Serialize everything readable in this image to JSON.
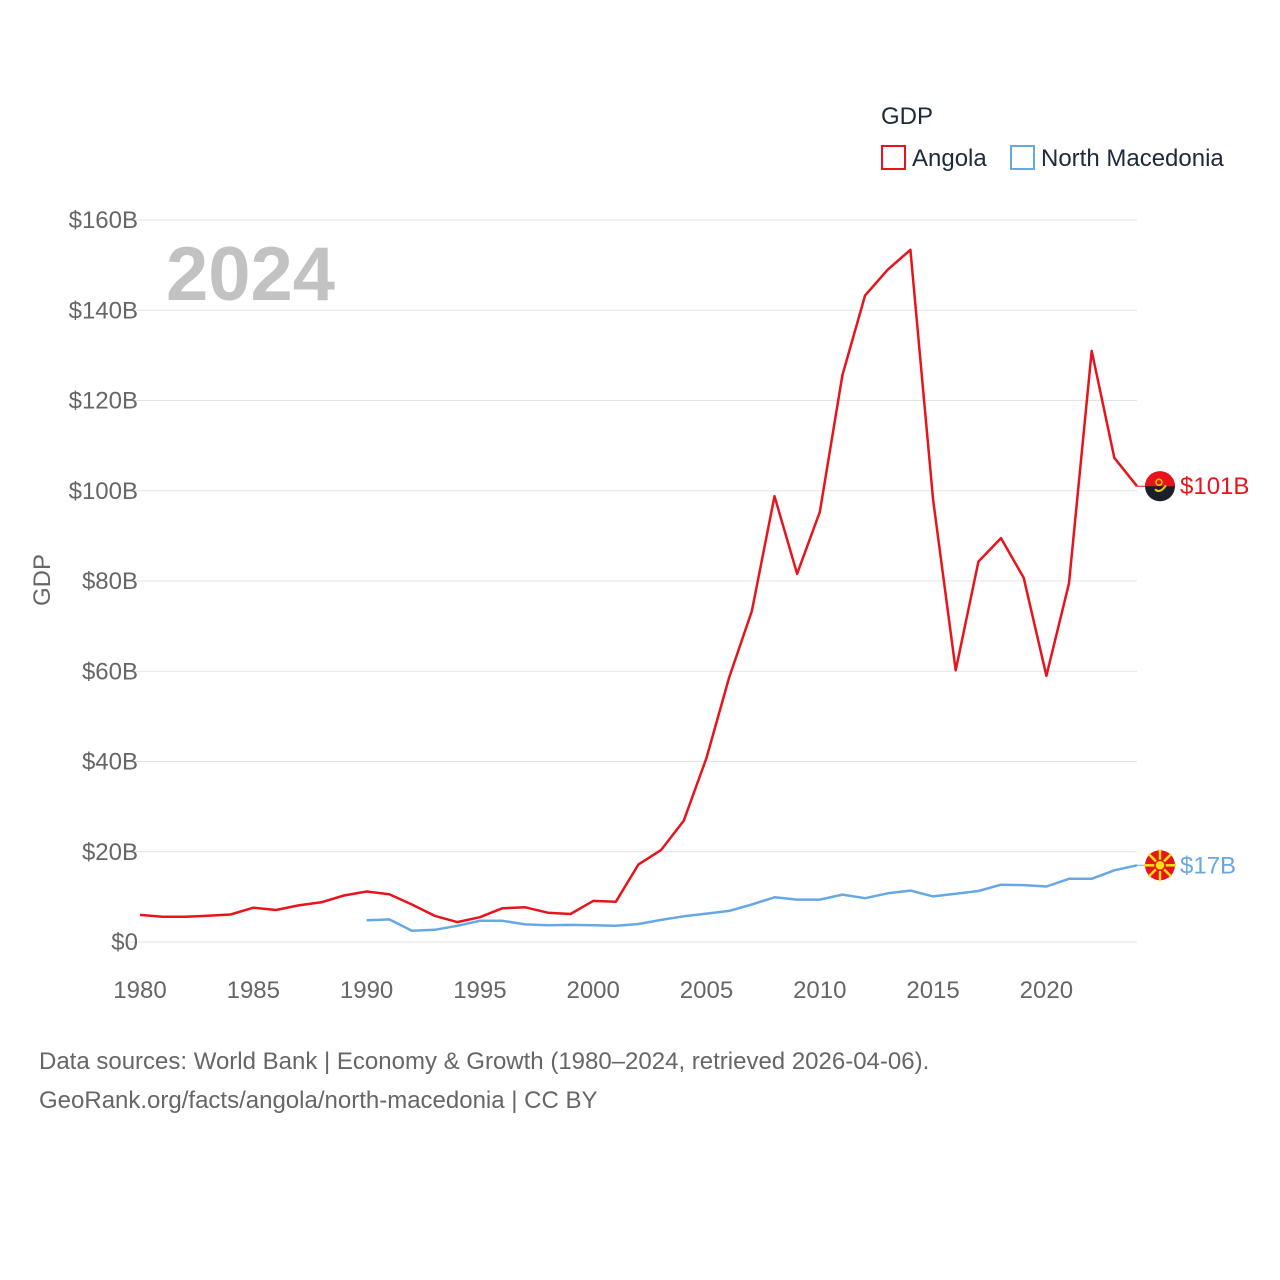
{
  "chart_data": {
    "type": "line",
    "title": "",
    "year_label": "2024",
    "ylabel": "GDP",
    "xlabel": "",
    "xlim": [
      1980,
      2024
    ],
    "ylim": [
      0,
      160
    ],
    "x_ticks": [
      1980,
      1985,
      1990,
      1995,
      2000,
      2005,
      2010,
      2015,
      2020
    ],
    "x_tick_labels": [
      "1980",
      "1985",
      "1990",
      "1995",
      "2000",
      "2005",
      "2010",
      "2015",
      "2020"
    ],
    "y_ticks": [
      0,
      20,
      40,
      60,
      80,
      100,
      120,
      140,
      160
    ],
    "y_tick_labels": [
      "$0",
      "$20B",
      "$40B",
      "$60B",
      "$80B",
      "$100B",
      "$120B",
      "$140B",
      "$160B"
    ],
    "legend": {
      "title": "GDP",
      "position": "top-right"
    },
    "series": [
      {
        "name": "Angola",
        "color": "#e8141b",
        "end_label": "$101B",
        "flag_icon": "angola-flag-icon",
        "x": [
          1980,
          1981,
          1982,
          1983,
          1984,
          1985,
          1986,
          1987,
          1988,
          1989,
          1990,
          1991,
          1992,
          1993,
          1994,
          1995,
          1996,
          1997,
          1998,
          1999,
          2000,
          2001,
          2002,
          2003,
          2004,
          2005,
          2006,
          2007,
          2008,
          2009,
          2010,
          2011,
          2012,
          2013,
          2014,
          2015,
          2016,
          2017,
          2018,
          2019,
          2020,
          2021,
          2022,
          2023,
          2024
        ],
        "values": [
          6.0,
          5.6,
          5.6,
          5.8,
          6.1,
          7.6,
          7.1,
          8.1,
          8.8,
          10.3,
          11.2,
          10.6,
          8.3,
          5.8,
          4.4,
          5.5,
          7.5,
          7.7,
          6.5,
          6.2,
          9.1,
          8.9,
          17.2,
          20.4,
          26.9,
          40.8,
          58.6,
          73.3,
          98.8,
          81.6,
          95.3,
          125.6,
          143.3,
          149.0,
          153.4,
          98.0,
          60.2,
          84.3,
          89.5,
          80.7,
          59.0,
          79.5,
          131.0,
          107.3,
          101.0
        ]
      },
      {
        "name": "North Macedonia",
        "color": "#67a8e4",
        "end_label": "$17B",
        "flag_icon": "north-macedonia-flag-icon",
        "x": [
          1990,
          1991,
          1992,
          1993,
          1994,
          1995,
          1996,
          1997,
          1998,
          1999,
          2000,
          2001,
          2002,
          2003,
          2004,
          2005,
          2006,
          2007,
          2008,
          2009,
          2010,
          2011,
          2012,
          2013,
          2014,
          2015,
          2016,
          2017,
          2018,
          2019,
          2020,
          2021,
          2022,
          2023,
          2024
        ],
        "values": [
          4.8,
          5.0,
          2.5,
          2.7,
          3.6,
          4.7,
          4.7,
          3.9,
          3.7,
          3.8,
          3.7,
          3.6,
          4.0,
          4.9,
          5.7,
          6.3,
          6.9,
          8.3,
          9.9,
          9.4,
          9.4,
          10.5,
          9.7,
          10.8,
          11.4,
          10.1,
          10.7,
          11.3,
          12.7,
          12.6,
          12.3,
          14.0,
          14.0,
          15.9,
          17.0
        ]
      }
    ]
  },
  "source": {
    "line1": "Data sources: World Bank | Economy & Growth (1980–2024, retrieved 2026-04-06).",
    "line2": "GeoRank.org/facts/angola/north-macedonia | CC BY"
  }
}
